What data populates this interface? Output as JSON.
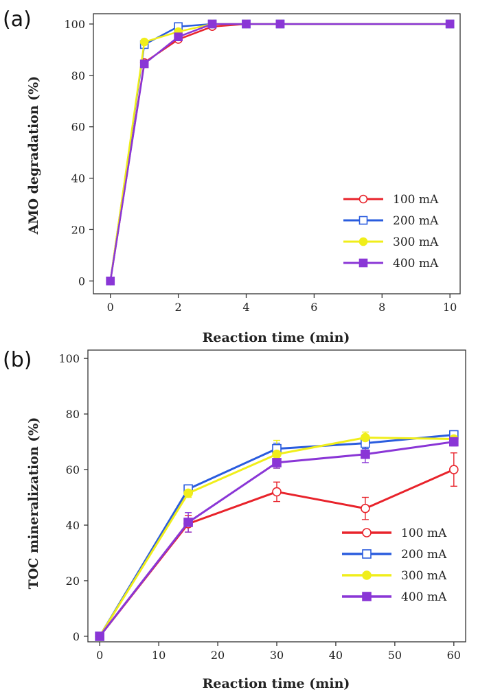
{
  "chart_data": [
    {
      "panel": "(a)",
      "type": "line",
      "xlabel": "Reaction time (min)",
      "ylabel": "AMO degradation (%)",
      "xlim": [
        -0.5,
        10.3
      ],
      "ylim": [
        -5,
        104
      ],
      "xticks": [
        0,
        2,
        4,
        6,
        8,
        10
      ],
      "yticks": [
        0,
        20,
        40,
        60,
        80,
        100
      ],
      "legend_position": "bottom-right",
      "series": [
        {
          "name": "100 mA",
          "color": "#e8232b",
          "marker": "circle-open",
          "x": [
            0,
            1,
            2,
            3,
            4,
            5,
            10
          ],
          "y": [
            0,
            85,
            94,
            99,
            100,
            100,
            100
          ]
        },
        {
          "name": "200 mA",
          "color": "#2a5cde",
          "marker": "square-open",
          "x": [
            0,
            1,
            2,
            3,
            4,
            5,
            10
          ],
          "y": [
            0,
            92,
            99,
            100,
            100,
            100,
            100
          ]
        },
        {
          "name": "300 mA",
          "color": "#f0ee1a",
          "marker": "circle-filled",
          "x": [
            0,
            1,
            2,
            3,
            4,
            5,
            10
          ],
          "y": [
            0,
            93,
            97,
            100,
            100,
            100,
            100
          ]
        },
        {
          "name": "400 mA",
          "color": "#8a36d6",
          "marker": "square-filled",
          "x": [
            0,
            1,
            2,
            3,
            4,
            5,
            10
          ],
          "y": [
            0,
            84.5,
            95,
            100,
            100,
            100,
            100
          ]
        }
      ]
    },
    {
      "panel": "(b)",
      "type": "line",
      "xlabel": "Reaction time (min)",
      "ylabel": "TOC mineralization (%)",
      "xlim": [
        -2,
        62
      ],
      "ylim": [
        -2,
        103
      ],
      "xticks": [
        0,
        10,
        20,
        30,
        40,
        50,
        60
      ],
      "yticks": [
        0,
        20,
        40,
        60,
        80,
        100
      ],
      "legend_position": "bottom-right",
      "series": [
        {
          "name": "100 mA",
          "color": "#e8232b",
          "marker": "circle-open",
          "x": [
            0,
            15,
            30,
            45,
            60
          ],
          "y": [
            0,
            40.5,
            52,
            46,
            60
          ],
          "err": [
            0,
            3,
            3.5,
            4,
            6
          ]
        },
        {
          "name": "200 mA",
          "color": "#2a5cde",
          "marker": "square-open",
          "x": [
            0,
            15,
            30,
            45,
            60
          ],
          "y": [
            0,
            53,
            67.5,
            69.5,
            72.5
          ],
          "err": [
            0,
            1.5,
            2,
            2,
            1.5
          ]
        },
        {
          "name": "300 mA",
          "color": "#f0ee1a",
          "marker": "circle-filled",
          "x": [
            0,
            15,
            30,
            45,
            60
          ],
          "y": [
            0,
            51.5,
            65.5,
            71.5,
            71
          ],
          "err": [
            0,
            1.5,
            5,
            2,
            1.5
          ]
        },
        {
          "name": "400 mA",
          "color": "#8a36d6",
          "marker": "square-filled",
          "x": [
            0,
            15,
            30,
            45,
            60
          ],
          "y": [
            0,
            41,
            62.5,
            65.5,
            70
          ],
          "err": [
            0,
            3.5,
            2,
            3,
            1.5
          ]
        }
      ]
    }
  ]
}
